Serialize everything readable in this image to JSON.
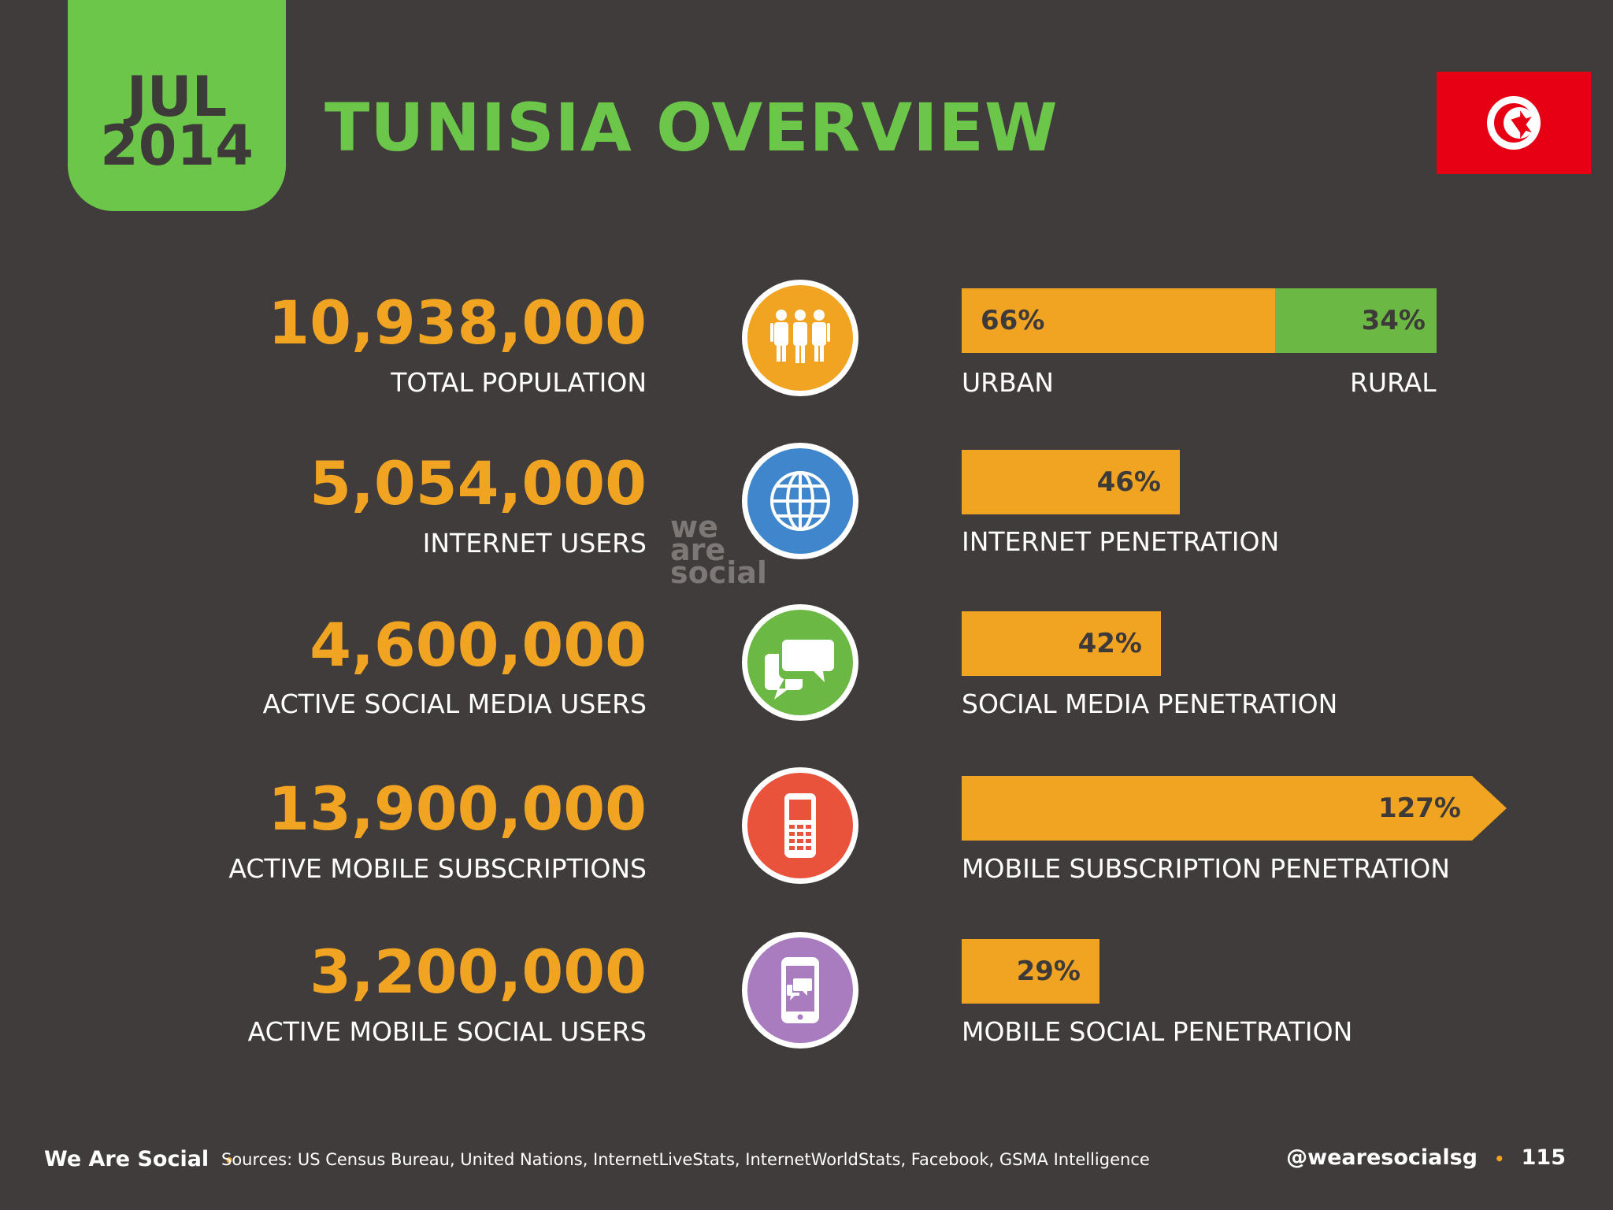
{
  "header": {
    "month": "JUL",
    "year": "2014",
    "title": "TUNISIA OVERVIEW"
  },
  "flag": {
    "country": "Tunisia",
    "icon": "tunisia-flag"
  },
  "watermark": [
    "we",
    "are",
    "social"
  ],
  "stats": [
    {
      "number": "10,938,000",
      "label": "TOTAL POPULATION",
      "icon": "people-icon",
      "icon_color": "#f0a422"
    },
    {
      "number": "5,054,000",
      "label": "INTERNET USERS",
      "icon": "globe-icon",
      "icon_color": "#3f86cc"
    },
    {
      "number": "4,600,000",
      "label": "ACTIVE SOCIAL MEDIA USERS",
      "icon": "chat-bubbles-icon",
      "icon_color": "#6cb844"
    },
    {
      "number": "13,900,000",
      "label": "ACTIVE MOBILE SUBSCRIPTIONS",
      "icon": "mobile-phone-icon",
      "icon_color": "#e9523b"
    },
    {
      "number": "3,200,000",
      "label": "ACTIVE MOBILE SOCIAL USERS",
      "icon": "smartphone-chat-icon",
      "icon_color": "#a97cc0"
    }
  ],
  "bars": {
    "population": {
      "urban_pct": "66%",
      "rural_pct": "34%",
      "urban_value": 66,
      "rural_value": 34,
      "urban_label": "URBAN",
      "rural_label": "RURAL"
    },
    "internet": {
      "pct": "46%",
      "value": 46,
      "label": "INTERNET PENETRATION"
    },
    "social": {
      "pct": "42%",
      "value": 42,
      "label": "SOCIAL MEDIA PENETRATION"
    },
    "mobile": {
      "pct": "127%",
      "value": 127,
      "label": "MOBILE SUBSCRIPTION PENETRATION"
    },
    "mobile_social": {
      "pct": "29%",
      "value": 29,
      "label": "MOBILE SOCIAL PENETRATION"
    }
  },
  "colors": {
    "background": "#403c3b",
    "accent_green": "#6cc64a",
    "accent_orange": "#f0a422",
    "flag_red": "#e70013"
  },
  "footer": {
    "brand": "We Are Social",
    "separator": "•",
    "sources": "Sources: US Census Bureau, United Nations, InternetLiveStats, InternetWorldStats, Facebook, GSMA Intelligence",
    "handle": "@wearesocialsg",
    "page": "115"
  }
}
